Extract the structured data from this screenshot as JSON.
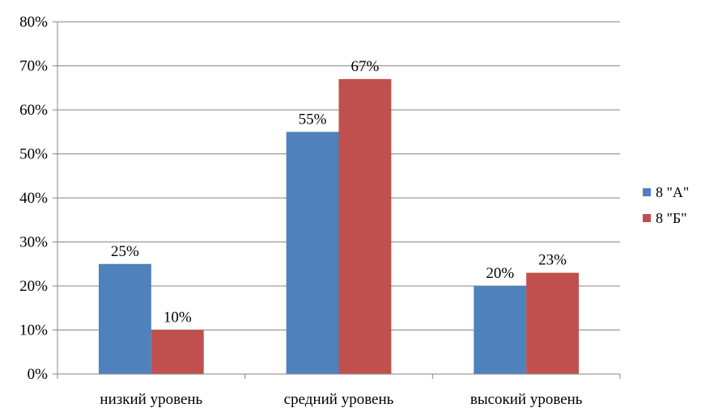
{
  "chart_data": {
    "type": "bar",
    "title": "",
    "xlabel": "",
    "ylabel": "",
    "categories": [
      "низкий уровень",
      "средний уровень",
      "высокий уровень"
    ],
    "series": [
      {
        "name": "8 \"А\"",
        "color": "#4F81BD",
        "values": [
          25,
          55,
          20
        ],
        "labels": [
          "25%",
          "55%",
          "20%"
        ]
      },
      {
        "name": "8 \"Б\"",
        "color": "#C0504D",
        "values": [
          10,
          67,
          23
        ],
        "labels": [
          "10%",
          "67%",
          "23%"
        ]
      }
    ],
    "ylim": [
      0,
      80
    ],
    "yticks": [
      0,
      10,
      20,
      30,
      40,
      50,
      60,
      70,
      80
    ],
    "ytick_labels": [
      "0%",
      "10%",
      "20%",
      "30%",
      "40%",
      "50%",
      "60%",
      "70%",
      "80%"
    ],
    "grid": true,
    "legend": "right"
  }
}
